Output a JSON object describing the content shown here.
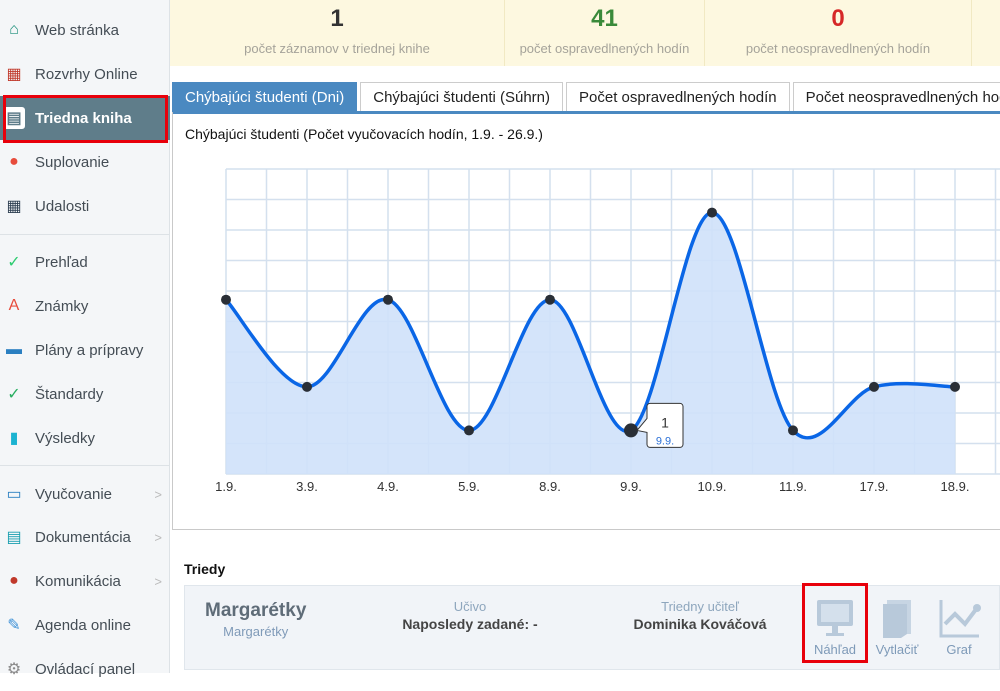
{
  "sidebar": {
    "items": [
      {
        "label": "Web stránka",
        "icon": "home-icon",
        "color": "#1a8f7a"
      },
      {
        "label": "Rozvrhy Online",
        "icon": "timetable-icon",
        "color": "#c0392b"
      },
      {
        "label": "Triedna kniha",
        "icon": "book-icon",
        "color": "#ffffff",
        "active": true
      },
      {
        "label": "Suplovanie",
        "icon": "person-icon",
        "color": "#e74c3c"
      },
      {
        "label": "Udalosti",
        "icon": "calendar-icon",
        "color": "#2c3e50"
      },
      {
        "label": "Prehľad",
        "icon": "check-circle-icon",
        "color": "#2ecc71"
      },
      {
        "label": "Známky",
        "icon": "grade-icon",
        "color": "#e74c3c"
      },
      {
        "label": "Plány a prípravy",
        "icon": "briefcase-icon",
        "color": "#2a7fc1"
      },
      {
        "label": "Štandardy",
        "icon": "shield-icon",
        "color": "#27ae60"
      },
      {
        "label": "Výsledky",
        "icon": "bar-chart-icon",
        "color": "#1bb3d1"
      },
      {
        "label": "Vyučovanie",
        "icon": "open-book-icon",
        "color": "#2a7fc1",
        "chevron": true
      },
      {
        "label": "Dokumentácia",
        "icon": "document-icon",
        "color": "#1a9fb0",
        "chevron": true
      },
      {
        "label": "Komunikácia",
        "icon": "chat-icon",
        "color": "#c0392b",
        "chevron": true
      },
      {
        "label": "Agenda online",
        "icon": "pen-icon",
        "color": "#3a8fd6"
      },
      {
        "label": "Ovládací panel",
        "icon": "gear-icon",
        "color": "#8a8a8a"
      }
    ],
    "chevron": ">"
  },
  "stats": [
    {
      "value": "1",
      "label": "počet záznamov v triednej knihe",
      "color": "#333333"
    },
    {
      "value": "41",
      "label": "počet ospravedlnených hodín",
      "color": "#3a8a3a"
    },
    {
      "value": "0",
      "label": "počet neospravedlnených hodín",
      "color": "#d62828"
    }
  ],
  "tabs": [
    "Chýbajúci študenti (Dni)",
    "Chýbajúci študenti (Súhrn)",
    "Počet ospravedlnených hodín",
    "Počet neospravedlnených hodín"
  ],
  "chart_data": {
    "type": "area",
    "title": "Chýbajúci študenti (Počet vyučovacích hodín, 1.9. - 26.9.)",
    "categories": [
      "1.9.",
      "3.9.",
      "4.9.",
      "5.9.",
      "8.9.",
      "9.9.",
      "10.9.",
      "11.9.",
      "17.9.",
      "18.9."
    ],
    "values": [
      4,
      2,
      4,
      1,
      4,
      1,
      6,
      1,
      2,
      2
    ],
    "ylim": [
      0,
      7
    ],
    "grid": true,
    "line_color": "#0a66e6",
    "fill_color": "#cfe1fa",
    "tooltip": {
      "value": "1",
      "label": "9.9."
    }
  },
  "classes": {
    "heading": "Triedy",
    "name": "Margarétky",
    "subname": "Margarétky",
    "ucivo_label": "Učivo",
    "ucivo_value": "Naposledy zadané: -",
    "teacher_label": "Triedny učiteľ",
    "teacher_value": "Dominika Kováčová",
    "buttons": [
      {
        "label": "Náhľad",
        "icon": "monitor-icon"
      },
      {
        "label": "Vytlačiť",
        "icon": "print-icon"
      },
      {
        "label": "Graf",
        "icon": "line-chart-icon"
      }
    ]
  }
}
